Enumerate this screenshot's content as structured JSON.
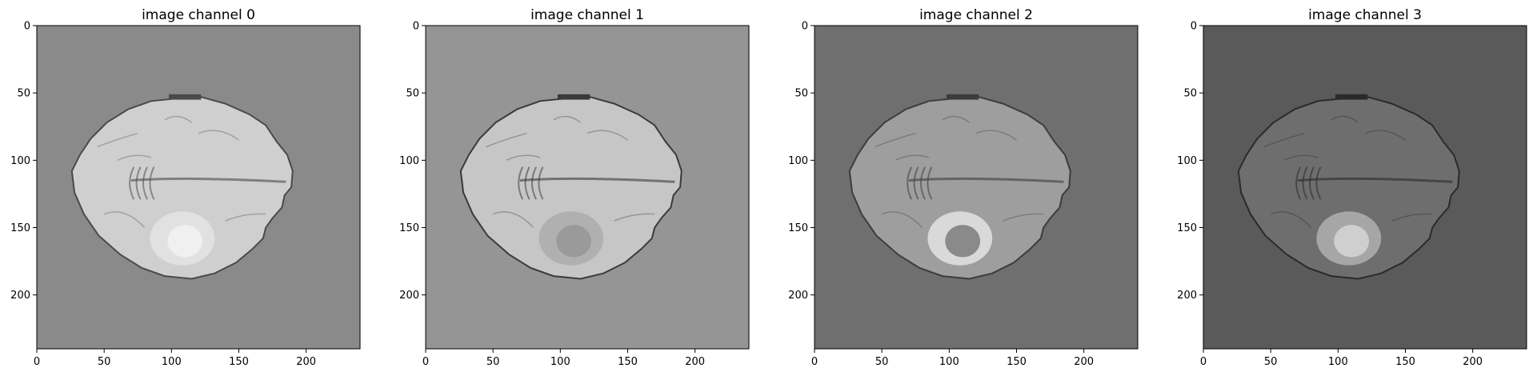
{
  "panels": [
    {
      "title": "image channel 0",
      "background": "#8a8a8a",
      "brain": "#cfcfcf",
      "dark": "#4a4a4a",
      "lesion": "#f0f0f0",
      "lesion_ring": "#e8e8e8"
    },
    {
      "title": "image channel 1",
      "background": "#959595",
      "brain": "#c6c6c6",
      "dark": "#3a3a3a",
      "lesion": "#9a9a9a",
      "lesion_ring": "#a6a6a6"
    },
    {
      "title": "image channel 2",
      "background": "#6f6f6f",
      "brain": "#9e9e9e",
      "dark": "#3c3c3c",
      "lesion": "#8a8a8a",
      "lesion_ring": "#f2f2f2"
    },
    {
      "title": "image channel 3",
      "background": "#5a5a5a",
      "brain": "#6e6e6e",
      "dark": "#2a2a2a",
      "lesion": "#cfcfcf",
      "lesion_ring": "#bdbdbd"
    }
  ],
  "x_ticks": [
    "0",
    "50",
    "100",
    "150",
    "200"
  ],
  "y_ticks": [
    "0",
    "50",
    "100",
    "150",
    "200"
  ]
}
